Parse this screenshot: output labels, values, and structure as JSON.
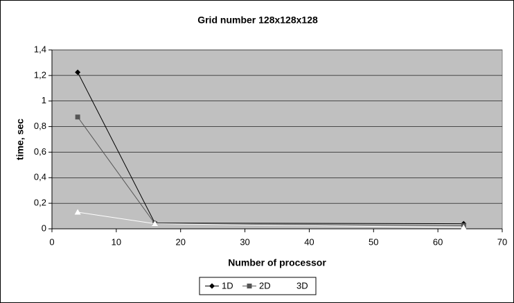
{
  "chart_data": {
    "type": "line",
    "title": "Grid number 128x128x128",
    "xlabel": "Number of processor",
    "ylabel": "time, sec",
    "x": [
      4,
      16,
      64
    ],
    "series": [
      {
        "name": "1D",
        "color": "#000000",
        "marker": "diamond",
        "values": [
          1.225,
          0.045,
          0.04
        ]
      },
      {
        "name": "2D",
        "color": "#555555",
        "marker": "square",
        "values": [
          0.875,
          0.04,
          0.025
        ]
      },
      {
        "name": "3D",
        "color": "#ffffff",
        "marker": "triangle",
        "values": [
          0.13,
          0.04,
          0.01
        ]
      }
    ],
    "xlim": [
      0,
      70
    ],
    "xticks": [
      0,
      10,
      20,
      30,
      40,
      50,
      60,
      70
    ],
    "ylim": [
      0,
      1.4
    ],
    "yticks": [
      0,
      {
        "value": 0.2,
        "label": "0,2"
      },
      {
        "value": 0.4,
        "label": "0,4"
      },
      {
        "value": 0.6,
        "label": "0,6"
      },
      {
        "value": 0.8,
        "label": "0,8"
      },
      1,
      {
        "value": 1.2,
        "label": "1,2"
      },
      {
        "value": 1.4,
        "label": "1,4"
      }
    ],
    "grid": true,
    "plot_background": "#c0c0c0",
    "legend": "bottom"
  }
}
